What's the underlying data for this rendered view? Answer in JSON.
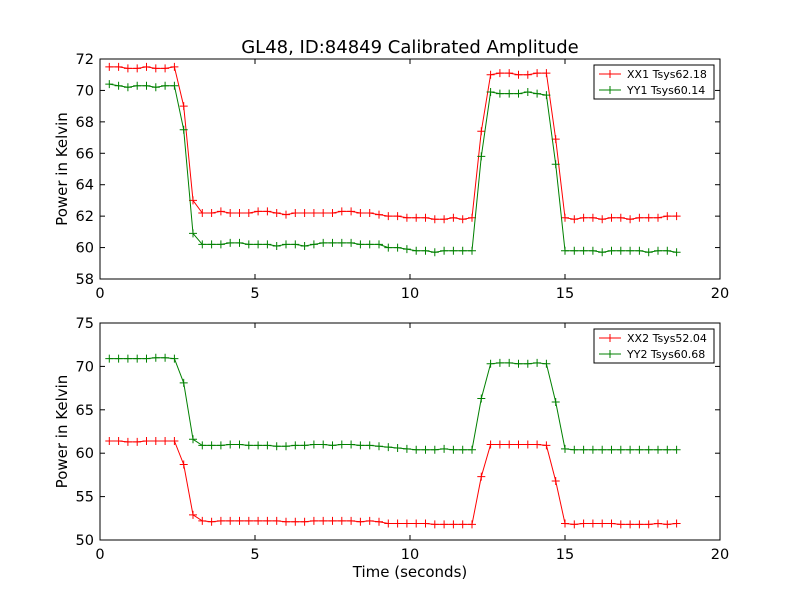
{
  "chart_data": [
    {
      "type": "line",
      "title": "GL48, ID:84849 Calibrated Amplitude",
      "xlabel": "",
      "ylabel": "Power in Kelvin",
      "xlim": [
        0,
        20
      ],
      "ylim": [
        58,
        72
      ],
      "xticks": [
        "0",
        "5",
        "10",
        "15",
        "20"
      ],
      "xtick_values": [
        0,
        5,
        10,
        15,
        20
      ],
      "yticks": [
        "58",
        "60",
        "62",
        "64",
        "66",
        "68",
        "70",
        "72"
      ],
      "ytick_values": [
        58,
        60,
        62,
        64,
        66,
        68,
        70,
        72
      ],
      "legend_position": "top-right",
      "grid": false,
      "x": [
        0.3,
        0.6,
        0.9,
        1.2,
        1.5,
        1.8,
        2.1,
        2.4,
        2.7,
        3.0,
        3.3,
        3.6,
        3.9,
        4.2,
        4.5,
        4.8,
        5.1,
        5.4,
        5.7,
        6.0,
        6.3,
        6.6,
        6.9,
        7.2,
        7.5,
        7.8,
        8.1,
        8.4,
        8.7,
        9.0,
        9.3,
        9.6,
        9.9,
        10.2,
        10.5,
        10.8,
        11.1,
        11.4,
        11.7,
        12.0,
        12.3,
        12.6,
        12.9,
        13.2,
        13.5,
        13.8,
        14.1,
        14.4,
        14.7,
        15.0,
        15.3,
        15.6,
        15.9,
        16.2,
        16.5,
        16.8,
        17.1,
        17.4,
        17.7,
        18.0,
        18.3,
        18.6
      ],
      "series": [
        {
          "name": "XX1 Tsys62.18",
          "color": "#ff0000",
          "values": [
            71.5,
            71.5,
            71.4,
            71.4,
            71.5,
            71.4,
            71.4,
            71.5,
            69.0,
            63.0,
            62.2,
            62.2,
            62.3,
            62.2,
            62.2,
            62.2,
            62.3,
            62.3,
            62.2,
            62.1,
            62.2,
            62.2,
            62.2,
            62.2,
            62.2,
            62.3,
            62.3,
            62.2,
            62.2,
            62.1,
            62.0,
            62.0,
            61.9,
            61.9,
            61.9,
            61.8,
            61.8,
            61.9,
            61.8,
            61.9,
            67.4,
            71.0,
            71.1,
            71.1,
            71.0,
            71.0,
            71.1,
            71.1,
            66.9,
            61.9,
            61.8,
            61.9,
            61.9,
            61.8,
            61.9,
            61.9,
            61.8,
            61.9,
            61.9,
            61.9,
            62.0,
            62.0
          ]
        },
        {
          "name": "YY1 Tsys60.14",
          "color": "#008000",
          "values": [
            70.4,
            70.3,
            70.2,
            70.3,
            70.3,
            70.2,
            70.3,
            70.3,
            67.5,
            60.9,
            60.2,
            60.2,
            60.2,
            60.3,
            60.3,
            60.2,
            60.2,
            60.2,
            60.1,
            60.2,
            60.2,
            60.1,
            60.2,
            60.3,
            60.3,
            60.3,
            60.3,
            60.2,
            60.2,
            60.2,
            60.0,
            60.0,
            59.9,
            59.8,
            59.8,
            59.7,
            59.8,
            59.8,
            59.8,
            59.8,
            65.8,
            69.9,
            69.8,
            69.8,
            69.8,
            69.9,
            69.8,
            69.7,
            65.3,
            59.8,
            59.8,
            59.8,
            59.8,
            59.7,
            59.8,
            59.8,
            59.8,
            59.8,
            59.7,
            59.8,
            59.8,
            59.7
          ]
        }
      ]
    },
    {
      "type": "line",
      "title": "",
      "xlabel": "Time (seconds)",
      "ylabel": "Power in Kelvin",
      "xlim": [
        0,
        20
      ],
      "ylim": [
        50,
        75
      ],
      "xticks": [
        "0",
        "5",
        "10",
        "15",
        "20"
      ],
      "xtick_values": [
        0,
        5,
        10,
        15,
        20
      ],
      "yticks": [
        "50",
        "55",
        "60",
        "65",
        "70",
        "75"
      ],
      "ytick_values": [
        50,
        55,
        60,
        65,
        70,
        75
      ],
      "legend_position": "top-right",
      "grid": false,
      "x": [
        0.3,
        0.6,
        0.9,
        1.2,
        1.5,
        1.8,
        2.1,
        2.4,
        2.7,
        3.0,
        3.3,
        3.6,
        3.9,
        4.2,
        4.5,
        4.8,
        5.1,
        5.4,
        5.7,
        6.0,
        6.3,
        6.6,
        6.9,
        7.2,
        7.5,
        7.8,
        8.1,
        8.4,
        8.7,
        9.0,
        9.3,
        9.6,
        9.9,
        10.2,
        10.5,
        10.8,
        11.1,
        11.4,
        11.7,
        12.0,
        12.3,
        12.6,
        12.9,
        13.2,
        13.5,
        13.8,
        14.1,
        14.4,
        14.7,
        15.0,
        15.3,
        15.6,
        15.9,
        16.2,
        16.5,
        16.8,
        17.1,
        17.4,
        17.7,
        18.0,
        18.3,
        18.6
      ],
      "series": [
        {
          "name": "XX2 Tsys52.04",
          "color": "#ff0000",
          "values": [
            61.4,
            61.4,
            61.3,
            61.3,
            61.4,
            61.4,
            61.4,
            61.4,
            58.7,
            52.9,
            52.2,
            52.1,
            52.2,
            52.2,
            52.2,
            52.2,
            52.2,
            52.2,
            52.2,
            52.1,
            52.1,
            52.1,
            52.2,
            52.2,
            52.2,
            52.2,
            52.2,
            52.1,
            52.2,
            52.1,
            51.9,
            51.9,
            51.9,
            51.9,
            51.9,
            51.8,
            51.8,
            51.8,
            51.8,
            51.8,
            57.3,
            61.0,
            61.0,
            61.0,
            61.0,
            61.0,
            61.0,
            60.9,
            56.8,
            51.9,
            51.8,
            51.9,
            51.9,
            51.9,
            51.9,
            51.8,
            51.8,
            51.8,
            51.8,
            51.9,
            51.8,
            51.9
          ]
        },
        {
          "name": "YY2 Tsys60.68",
          "color": "#008000",
          "values": [
            70.9,
            70.9,
            70.9,
            70.9,
            70.9,
            71.0,
            71.0,
            70.9,
            68.1,
            61.6,
            60.9,
            60.9,
            60.9,
            61.0,
            61.0,
            60.9,
            60.9,
            60.9,
            60.8,
            60.8,
            60.9,
            60.9,
            61.0,
            61.0,
            60.9,
            61.0,
            61.0,
            60.9,
            60.9,
            60.8,
            60.7,
            60.6,
            60.5,
            60.4,
            60.4,
            60.4,
            60.5,
            60.4,
            60.4,
            60.4,
            66.3,
            70.3,
            70.4,
            70.4,
            70.3,
            70.3,
            70.4,
            70.3,
            65.9,
            60.5,
            60.4,
            60.4,
            60.4,
            60.4,
            60.4,
            60.4,
            60.4,
            60.4,
            60.4,
            60.4,
            60.4,
            60.4
          ]
        }
      ]
    }
  ]
}
